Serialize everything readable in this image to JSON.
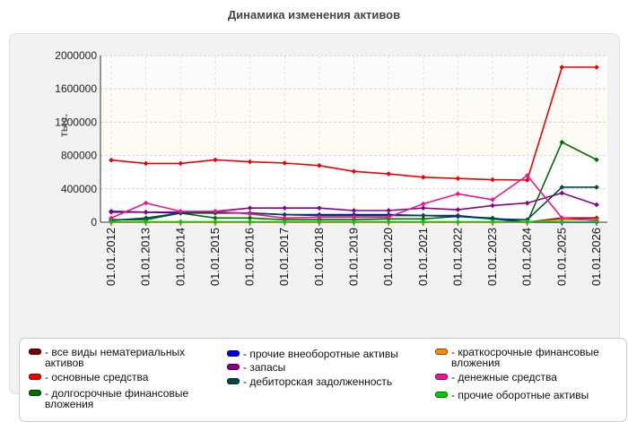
{
  "chart_data": {
    "type": "line",
    "title": "Динамика изменения активов",
    "ylabel": "тыс.",
    "xlabel": "",
    "categories": [
      "01.01.2012",
      "01.01.2013",
      "01.01.2014",
      "01.01.2015",
      "01.01.2016",
      "01.01.2017",
      "01.01.2018",
      "01.01.2019",
      "01.01.2020",
      "01.01.2021",
      "01.01.2022",
      "01.01.2023",
      "01.01.2024",
      "01.01.2025",
      "01.01.2026"
    ],
    "ylim": [
      0,
      2000000
    ],
    "yticks": [
      0,
      400000,
      800000,
      1200000,
      1600000,
      2000000
    ],
    "ytick_labels": [
      "0",
      "400000",
      "800000",
      "1200000",
      "1600000",
      "2000000"
    ],
    "grid": true,
    "legend_position": "bottom",
    "series": [
      {
        "name": "все виды нематериальных активов",
        "color": "#7b0000",
        "values": [
          0,
          0,
          0,
          0,
          0,
          0,
          0,
          0,
          0,
          0,
          0,
          0,
          0,
          50000,
          50000
        ]
      },
      {
        "name": "основные средства",
        "color": "#ee0000",
        "values": [
          745000,
          705000,
          705000,
          748000,
          725000,
          710000,
          680000,
          610000,
          580000,
          540000,
          525000,
          510000,
          505000,
          1860000,
          1860000
        ]
      },
      {
        "name": "долгосрочные финансовые вложения",
        "color": "#006e00",
        "values": [
          30000,
          30000,
          110000,
          50000,
          50000,
          30000,
          30000,
          30000,
          40000,
          40000,
          70000,
          50000,
          0,
          960000,
          750000
        ]
      },
      {
        "name": "прочие внеоборотные активы",
        "color": "#0000ee",
        "values": [
          130000,
          120000,
          110000,
          115000,
          110000,
          90000,
          90000,
          90000,
          90000,
          80000,
          70000,
          40000,
          0,
          0,
          0
        ]
      },
      {
        "name": "запасы",
        "color": "#8b008b",
        "values": [
          120000,
          120000,
          120000,
          130000,
          170000,
          170000,
          170000,
          140000,
          140000,
          170000,
          150000,
          200000,
          230000,
          350000,
          210000
        ]
      },
      {
        "name": "дебиторская задолженность",
        "color": "#004848",
        "values": [
          20000,
          50000,
          110000,
          110000,
          110000,
          90000,
          80000,
          80000,
          80000,
          80000,
          80000,
          40000,
          30000,
          420000,
          420000
        ]
      },
      {
        "name": "краткосрочные финансовые вложения",
        "color": "#ff8800",
        "values": [
          0,
          0,
          0,
          0,
          0,
          0,
          0,
          0,
          0,
          0,
          0,
          0,
          0,
          30000,
          30000
        ]
      },
      {
        "name": "денежные средства",
        "color": "#ee1493",
        "values": [
          50000,
          230000,
          130000,
          130000,
          100000,
          50000,
          60000,
          60000,
          60000,
          220000,
          340000,
          270000,
          560000,
          50000,
          20000
        ]
      },
      {
        "name": "прочие оборотные активы",
        "color": "#00cc00",
        "values": [
          5000,
          5000,
          5000,
          5000,
          5000,
          5000,
          5000,
          5000,
          5000,
          5000,
          5000,
          5000,
          5000,
          5000,
          5000
        ]
      }
    ]
  }
}
